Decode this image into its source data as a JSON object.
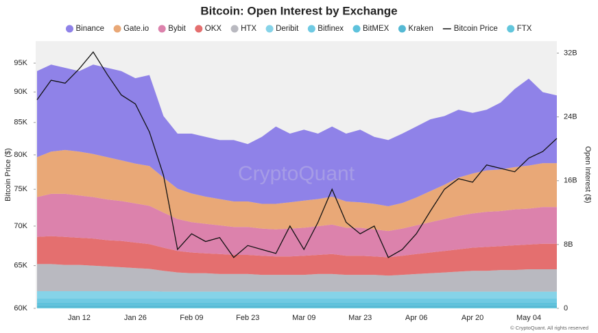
{
  "chart_data": {
    "type": "area",
    "stacked": true,
    "title": "Bitcoin: Open Interest by Exchange",
    "ylabel": "Bitcoin Price ($)",
    "y2label": "Open Interest ($)",
    "watermark": "CryptoQuant",
    "footer": "© CryptoQuant. All rights reserved",
    "log_y": true,
    "grid": false,
    "legend": "top",
    "background": "#f0f0f0",
    "categories": [
      null,
      null,
      null,
      "Jan 12",
      null,
      null,
      null,
      "Jan 26",
      null,
      null,
      null,
      "Feb 09",
      null,
      null,
      null,
      "Feb 23",
      null,
      null,
      null,
      "Mar 09",
      null,
      null,
      null,
      "Mar 23",
      null,
      null,
      null,
      "Apr 06",
      null,
      null,
      null,
      "Apr 20",
      null,
      null,
      null,
      "May 04",
      null,
      null
    ],
    "ylim": [
      60000,
      99000
    ],
    "yticks": [
      {
        "value": 60000,
        "label": "60K"
      },
      {
        "value": 65000,
        "label": "65K"
      },
      {
        "value": 70000,
        "label": "70K"
      },
      {
        "value": 75000,
        "label": "75K"
      },
      {
        "value": 80000,
        "label": "80K"
      },
      {
        "value": 85000,
        "label": "85K"
      },
      {
        "value": 90000,
        "label": "90K"
      },
      {
        "value": 95000,
        "label": "95K"
      }
    ],
    "y2lim": [
      0,
      33500000000.0
    ],
    "y2ticks": [
      0,
      {
        "value": 8000000000.0,
        "label": "8B"
      },
      {
        "value": 16000000000.0,
        "label": "16B"
      },
      {
        "value": 24000000000.0,
        "label": "24B"
      },
      {
        "value": 32000000000.0,
        "label": "32B"
      }
    ],
    "series": [
      {
        "name": "Binance",
        "color": "#8f82e8",
        "axis": "y2",
        "type": "area",
        "values": [
          10800000000.0,
          10900000000.0,
          10300000000.0,
          10100000000.0,
          11200000000.0,
          11200000000.0,
          11200000000.0,
          10700000000.0,
          11400000000.0,
          7700000000.0,
          6900000000.0,
          7500000000.0,
          7500000000.0,
          7400000000.0,
          7700000000.0,
          7200000000.0,
          8400000000.0,
          9700000000.0,
          8600000000.0,
          8900000000.0,
          8200000000.0,
          8800000000.0,
          8500000000.0,
          9100000000.0,
          8400000000.0,
          8300000000.0,
          8700000000.0,
          8900000000.0,
          9000000000.0,
          8600000000.0,
          8500000000.0,
          7600000000.0,
          7600000000.0,
          8400000000.0,
          9800000000.0,
          10900000000.0,
          8900000000.0,
          8500000000.0
        ]
      },
      {
        "name": "Gate.io",
        "color": "#e9a877",
        "axis": "y2",
        "type": "area",
        "values": [
          5000000000.0,
          5300000000.0,
          5500000000.0,
          5500000000.0,
          5400000000.0,
          5300000000.0,
          5100000000.0,
          5000000000.0,
          5000000000.0,
          4400000000.0,
          3800000000.0,
          3600000000.0,
          3400000000.0,
          3300000000.0,
          3200000000.0,
          3200000000.0,
          3100000000.0,
          3200000000.0,
          3300000000.0,
          3400000000.0,
          3400000000.0,
          3500000000.0,
          3300000000.0,
          3200000000.0,
          3200000000.0,
          3100000000.0,
          3200000000.0,
          3500000000.0,
          3900000000.0,
          4300000000.0,
          4800000000.0,
          5000000000.0,
          5200000000.0,
          5200000000.0,
          5300000000.0,
          5400000000.0,
          5500000000.0,
          5500000000.0
        ]
      },
      {
        "name": "Bybit",
        "color": "#dc82ac",
        "axis": "y2",
        "type": "area",
        "values": [
          5000000000.0,
          5300000000.0,
          5400000000.0,
          5300000000.0,
          5200000000.0,
          5100000000.0,
          5000000000.0,
          4900000000.0,
          4800000000.0,
          4400000000.0,
          4000000000.0,
          3800000000.0,
          3700000000.0,
          3600000000.0,
          3500000000.0,
          3500000000.0,
          3400000000.0,
          3400000000.0,
          3500000000.0,
          3500000000.0,
          3600000000.0,
          3700000000.0,
          3500000000.0,
          3500000000.0,
          3400000000.0,
          3300000000.0,
          3400000000.0,
          3600000000.0,
          3800000000.0,
          4000000000.0,
          4200000000.0,
          4300000000.0,
          4400000000.0,
          4400000000.0,
          4500000000.0,
          4500000000.0,
          4600000000.0,
          4600000000.0
        ]
      },
      {
        "name": "OKX",
        "color": "#e46f6f",
        "axis": "y2",
        "type": "area",
        "values": [
          3400000000.0,
          3500000000.0,
          3500000000.0,
          3400000000.0,
          3400000000.0,
          3300000000.0,
          3300000000.0,
          3200000000.0,
          3100000000.0,
          2900000000.0,
          2700000000.0,
          2600000000.0,
          2500000000.0,
          2500000000.0,
          2400000000.0,
          2400000000.0,
          2400000000.0,
          2300000000.0,
          2300000000.0,
          2400000000.0,
          2400000000.0,
          2500000000.0,
          2400000000.0,
          2400000000.0,
          2300000000.0,
          2300000000.0,
          2400000000.0,
          2500000000.0,
          2600000000.0,
          2700000000.0,
          2800000000.0,
          2900000000.0,
          3000000000.0,
          3000000000.0,
          3100000000.0,
          3100000000.0,
          3200000000.0,
          3200000000.0
        ]
      },
      {
        "name": "HTX",
        "color": "#b9b9c0",
        "axis": "y2",
        "type": "area",
        "values": [
          3400000000.0,
          3400000000.0,
          3300000000.0,
          3300000000.0,
          3200000000.0,
          3100000000.0,
          3000000000.0,
          2900000000.0,
          2800000000.0,
          2600000000.0,
          2400000000.0,
          2300000000.0,
          2300000000.0,
          2200000000.0,
          2200000000.0,
          2200000000.0,
          2100000000.0,
          2100000000.0,
          2100000000.0,
          2100000000.0,
          2200000000.0,
          2200000000.0,
          2100000000.0,
          2100000000.0,
          2100000000.0,
          2000000000.0,
          2100000000.0,
          2200000000.0,
          2300000000.0,
          2400000000.0,
          2500000000.0,
          2600000000.0,
          2600000000.0,
          2700000000.0,
          2700000000.0,
          2800000000.0,
          2800000000.0,
          2800000000.0
        ]
      },
      {
        "name": "Deribit",
        "color": "#86d3e8",
        "axis": "y2",
        "type": "area",
        "values": [
          900000000.0,
          900000000.0,
          900000000.0,
          900000000.0,
          900000000.0,
          900000000.0,
          900000000.0,
          900000000.0,
          900000000.0,
          850000000.0,
          850000000.0,
          850000000.0,
          850000000.0,
          850000000.0,
          850000000.0,
          850000000.0,
          850000000.0,
          850000000.0,
          850000000.0,
          850000000.0,
          850000000.0,
          850000000.0,
          850000000.0,
          850000000.0,
          850000000.0,
          850000000.0,
          850000000.0,
          850000000.0,
          850000000.0,
          850000000.0,
          850000000.0,
          850000000.0,
          850000000.0,
          850000000.0,
          850000000.0,
          850000000.0,
          850000000.0,
          850000000.0
        ]
      },
      {
        "name": "Bitfinex",
        "color": "#6fcae3",
        "axis": "y2",
        "type": "area",
        "values": [
          500000000.0,
          500000000.0,
          500000000.0,
          500000000.0,
          500000000.0,
          500000000.0,
          500000000.0,
          500000000.0,
          500000000.0,
          500000000.0,
          500000000.0,
          500000000.0,
          500000000.0,
          500000000.0,
          500000000.0,
          500000000.0,
          500000000.0,
          500000000.0,
          500000000.0,
          500000000.0,
          500000000.0,
          500000000.0,
          500000000.0,
          500000000.0,
          500000000.0,
          500000000.0,
          500000000.0,
          500000000.0,
          500000000.0,
          500000000.0,
          500000000.0,
          500000000.0,
          500000000.0,
          500000000.0,
          500000000.0,
          500000000.0,
          500000000.0,
          500000000.0
        ]
      },
      {
        "name": "BitMEX",
        "color": "#5ec2dc",
        "axis": "y2",
        "type": "area",
        "values": [
          400000000.0,
          400000000.0,
          400000000.0,
          400000000.0,
          400000000.0,
          400000000.0,
          400000000.0,
          400000000.0,
          400000000.0,
          400000000.0,
          400000000.0,
          400000000.0,
          400000000.0,
          400000000.0,
          400000000.0,
          400000000.0,
          400000000.0,
          400000000.0,
          400000000.0,
          400000000.0,
          400000000.0,
          400000000.0,
          400000000.0,
          400000000.0,
          400000000.0,
          400000000.0,
          400000000.0,
          400000000.0,
          400000000.0,
          400000000.0,
          400000000.0,
          400000000.0,
          400000000.0,
          400000000.0,
          400000000.0,
          400000000.0,
          400000000.0,
          400000000.0
        ]
      },
      {
        "name": "Kraken",
        "color": "#55b9d4",
        "axis": "y2",
        "type": "area",
        "values": [
          250000000.0,
          250000000.0,
          250000000.0,
          250000000.0,
          250000000.0,
          250000000.0,
          250000000.0,
          250000000.0,
          250000000.0,
          250000000.0,
          250000000.0,
          250000000.0,
          250000000.0,
          250000000.0,
          250000000.0,
          250000000.0,
          250000000.0,
          250000000.0,
          250000000.0,
          250000000.0,
          250000000.0,
          250000000.0,
          250000000.0,
          250000000.0,
          250000000.0,
          250000000.0,
          250000000.0,
          250000000.0,
          250000000.0,
          250000000.0,
          250000000.0,
          250000000.0,
          250000000.0,
          250000000.0,
          250000000.0,
          250000000.0,
          250000000.0,
          250000000.0
        ]
      },
      {
        "name": "Bitcoin Price",
        "color": "#111111",
        "axis": "y",
        "type": "line",
        "values": [
          88700,
          92000,
          91500,
          94000,
          97000,
          93000,
          89500,
          88000,
          83500,
          77000,
          67000,
          69000,
          68000,
          68500,
          66000,
          67500,
          67000,
          66500,
          70000,
          67000,
          70500,
          75000,
          70500,
          69000,
          70000,
          66000,
          67000,
          69000,
          72000,
          75000,
          76500,
          76000,
          78500,
          78000,
          77500,
          79500,
          80500,
          82500
        ]
      },
      {
        "name": "FTX",
        "color": "#62c6dc",
        "axis": "y2",
        "type": "area",
        "values": [
          100000000.0,
          100000000.0,
          100000000.0,
          100000000.0,
          100000000.0,
          100000000.0,
          100000000.0,
          100000000.0,
          100000000.0,
          100000000.0,
          100000000.0,
          100000000.0,
          100000000.0,
          100000000.0,
          100000000.0,
          100000000.0,
          100000000.0,
          100000000.0,
          100000000.0,
          100000000.0,
          100000000.0,
          100000000.0,
          100000000.0,
          100000000.0,
          100000000.0,
          100000000.0,
          100000000.0,
          100000000.0,
          100000000.0,
          100000000.0,
          100000000.0,
          100000000.0,
          100000000.0,
          100000000.0,
          100000000.0,
          100000000.0,
          100000000.0,
          100000000.0
        ]
      }
    ]
  }
}
